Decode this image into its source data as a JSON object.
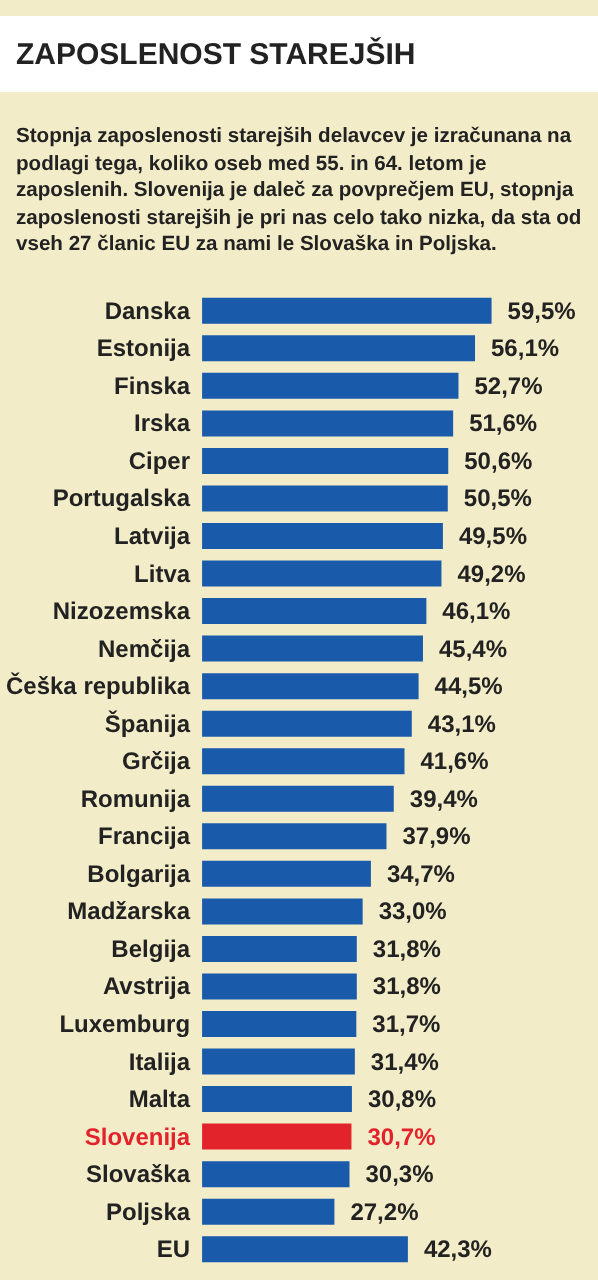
{
  "chart_data": {
    "type": "bar",
    "orientation": "horizontal",
    "title": "ZAPOSLENOST STAREJŠIH",
    "subtitle": "Stopnja zaposlenosti starejših delavcev je izračunana na podlagi tega, koliko oseb med 55. in 64. letom je zaposlenih. Slovenija je daleč za povprečjem EU, stopnja zaposlenosti starejših je pri nas celo tako nizka, da sta od vseh 27 članic EU za nami le Slovaška in Poljska.",
    "categories": [
      "Danska",
      "Estonija",
      "Finska",
      "Irska",
      "Ciper",
      "Portugalska",
      "Latvija",
      "Litva",
      "Nizozemska",
      "Nemčija",
      "Češka republika",
      "Španija",
      "Grčija",
      "Romunija",
      "Francija",
      "Bolgarija",
      "Madžarska",
      "Belgija",
      "Avstrija",
      "Luxemburg",
      "Italija",
      "Malta",
      "Slovenija",
      "Slovaška",
      "Poljska",
      "EU"
    ],
    "values": [
      59.5,
      56.1,
      52.7,
      51.6,
      50.6,
      50.5,
      49.5,
      49.2,
      46.1,
      45.4,
      44.5,
      43.1,
      41.6,
      39.4,
      37.9,
      34.7,
      33.0,
      31.8,
      31.8,
      31.7,
      31.4,
      30.8,
      30.7,
      30.3,
      27.2,
      42.3
    ],
    "value_labels": [
      "59,5%",
      "56,1%",
      "52,7%",
      "51,6%",
      "50,6%",
      "50,5%",
      "49,5%",
      "49,2%",
      "46,1%",
      "45,4%",
      "44,5%",
      "43,1%",
      "41,6%",
      "39,4%",
      "37,9%",
      "34,7%",
      "33,0%",
      "31,8%",
      "31,8%",
      "31,7%",
      "31,4%",
      "30,8%",
      "30,7%",
      "30,3%",
      "27,2%",
      "42,3%"
    ],
    "color": "#1a5aab",
    "colors": [
      "#1a5aab",
      "#1a5aab",
      "#1a5aab",
      "#1a5aab",
      "#1a5aab",
      "#1a5aab",
      "#1a5aab",
      "#1a5aab",
      "#1a5aab",
      "#1a5aab",
      "#1a5aab",
      "#1a5aab",
      "#1a5aab",
      "#1a5aab",
      "#1a5aab",
      "#1a5aab",
      "#1a5aab",
      "#1a5aab",
      "#1a5aab",
      "#1a5aab",
      "#1a5aab",
      "#1a5aab",
      "#e3232b",
      "#1a5aab",
      "#1a5aab",
      "#1a5aab"
    ]
  }
}
